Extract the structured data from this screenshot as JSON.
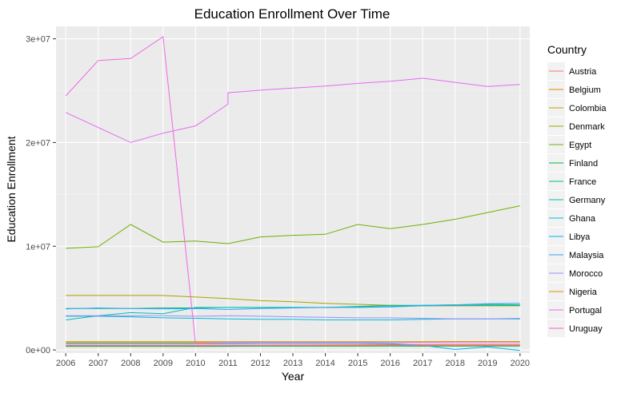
{
  "chart_data": {
    "type": "line",
    "title": "Education Enrollment Over Time",
    "xlabel": "Year",
    "ylabel": "Education Enrollment",
    "legend_title": "Country",
    "legend_position": "right",
    "grid": true,
    "x": [
      2006,
      2007,
      2008,
      2009,
      2010,
      2011,
      2012,
      2013,
      2014,
      2015,
      2016,
      2017,
      2018,
      2019,
      2020
    ],
    "x_tick_labels": [
      "2006",
      "2007",
      "2008",
      "2009",
      "2010",
      "2011",
      "2012",
      "2013",
      "2014",
      "2015",
      "2016",
      "2017",
      "2018",
      "2019",
      "2020"
    ],
    "ylim": [
      -300000,
      31200000
    ],
    "y_ticks": [
      0,
      10000000,
      20000000,
      30000000
    ],
    "y_tick_labels": [
      "0e+00",
      "1e+07",
      "2e+07",
      "3e+07"
    ],
    "series": [
      {
        "name": "Austria",
        "color": "#F8766D",
        "values": [
          330000,
          330000,
          330000,
          330000,
          330000,
          350000,
          380000,
          380000,
          380000,
          380000,
          390000,
          380000,
          400000,
          410000,
          420000
        ]
      },
      {
        "name": "Belgium",
        "color": "#E58700",
        "values": [
          430000,
          430000,
          430000,
          430000,
          440000,
          450000,
          470000,
          480000,
          490000,
          500000,
          510000,
          510000,
          520000,
          520000,
          520000
        ]
      },
      {
        "name": "Colombia",
        "color": "#C99800",
        "values": [
          800000,
          800000,
          800000,
          800000,
          800000,
          790000,
          790000,
          790000,
          790000,
          800000,
          800000,
          800000,
          820000,
          820000,
          820000
        ]
      },
      {
        "name": "Denmark",
        "color": "#A3A500",
        "values": [
          5250000,
          5250000,
          5250000,
          5250000,
          5100000,
          4950000,
          4750000,
          4650000,
          4500000,
          4400000,
          4300000,
          4250000,
          4250000,
          4250000,
          4250000
        ]
      },
      {
        "name": "Egypt",
        "color": "#6BB100",
        "values": [
          9800000,
          9950000,
          12100000,
          10400000,
          10500000,
          10250000,
          10900000,
          11050000,
          11150000,
          12100000,
          11700000,
          12100000,
          12600000,
          13250000,
          13900000
        ]
      },
      {
        "name": "Finland",
        "color": "#00BA38",
        "values": [
          380000,
          380000,
          380000,
          380000,
          380000,
          380000,
          380000,
          380000,
          380000,
          380000,
          380000,
          380000,
          380000,
          380000,
          380000
        ]
      },
      {
        "name": "France",
        "color": "#00BF7D",
        "values": [
          4000000,
          4000000,
          4000000,
          4050000,
          4050000,
          4100000,
          4100000,
          4100000,
          4100000,
          4200000,
          4300000,
          4300000,
          4350000,
          4400000,
          4350000
        ]
      },
      {
        "name": "Germany",
        "color": "#00C0AF",
        "values": [
          2900000,
          3300000,
          3600000,
          3500000,
          4100000,
          4100000,
          4100000,
          4100000,
          4100000,
          4100000,
          4150000,
          4250000,
          4300000,
          4300000,
          4300000
        ]
      },
      {
        "name": "Ghana",
        "color": "#00BCD8",
        "values": [
          3250000,
          3250000,
          3200000,
          3100000,
          3050000,
          3000000,
          2950000,
          2950000,
          2900000,
          2900000,
          2900000,
          2950000,
          3000000,
          3000000,
          3000000
        ]
      },
      {
        "name": "Libya",
        "color": "#00B0F6",
        "values": [
          600000,
          600000,
          600000,
          600000,
          600000,
          620000,
          650000,
          650000,
          650000,
          650000,
          600000,
          450000,
          50000,
          300000,
          -50000
        ]
      },
      {
        "name": "Malaysia",
        "color": "#35A2FF",
        "values": [
          3950000,
          4050000,
          4000000,
          3950000,
          4000000,
          3900000,
          4000000,
          4050000,
          4100000,
          4150000,
          4200000,
          4300000,
          4350000,
          4450000,
          4500000
        ]
      },
      {
        "name": "Morocco",
        "color": "#9590FF",
        "values": [
          3300000,
          3300000,
          3300000,
          3300000,
          3250000,
          3300000,
          3250000,
          3200000,
          3150000,
          3100000,
          3100000,
          3050000,
          3000000,
          3000000,
          3050000
        ]
      },
      {
        "name": "Nigeria",
        "color": "#D89000",
        "hidden_color_note": "",
        "values": [
          700000,
          700000,
          700000,
          700000,
          700000,
          700000,
          700000,
          700000,
          700000,
          700000,
          700000,
          700000,
          700000,
          700000,
          700000
        ]
      },
      {
        "name": "Portugal",
        "color": "#F365E6",
        "values": [
          24500000,
          27900000,
          28100000,
          30200000,
          600000,
          700000,
          700000,
          700000,
          700000,
          700000,
          700000,
          700000,
          700000,
          700000,
          700000
        ]
      },
      {
        "name": "Uruguay",
        "color": "#FF62BC",
        "values": [
          450000,
          450000,
          450000,
          450000,
          450000,
          450000,
          450000,
          450000,
          450000,
          450000,
          450000,
          450000,
          450000,
          450000,
          450000
        ]
      }
    ],
    "extra_series_portugal_part2": {
      "name": "Nigeria",
      "color": "#E76BF3",
      "x": [
        2006,
        2008,
        2009,
        2010,
        2011,
        2011,
        2012,
        2013,
        2014,
        2015,
        2016,
        2017,
        2018,
        2019,
        2020
      ],
      "values": [
        22900000,
        20000000,
        20900000,
        21600000,
        23700000,
        24800000,
        25050000,
        25250000,
        25450000,
        25700000,
        25900000,
        26200000,
        25800000,
        25400000,
        25600000
      ]
    }
  }
}
